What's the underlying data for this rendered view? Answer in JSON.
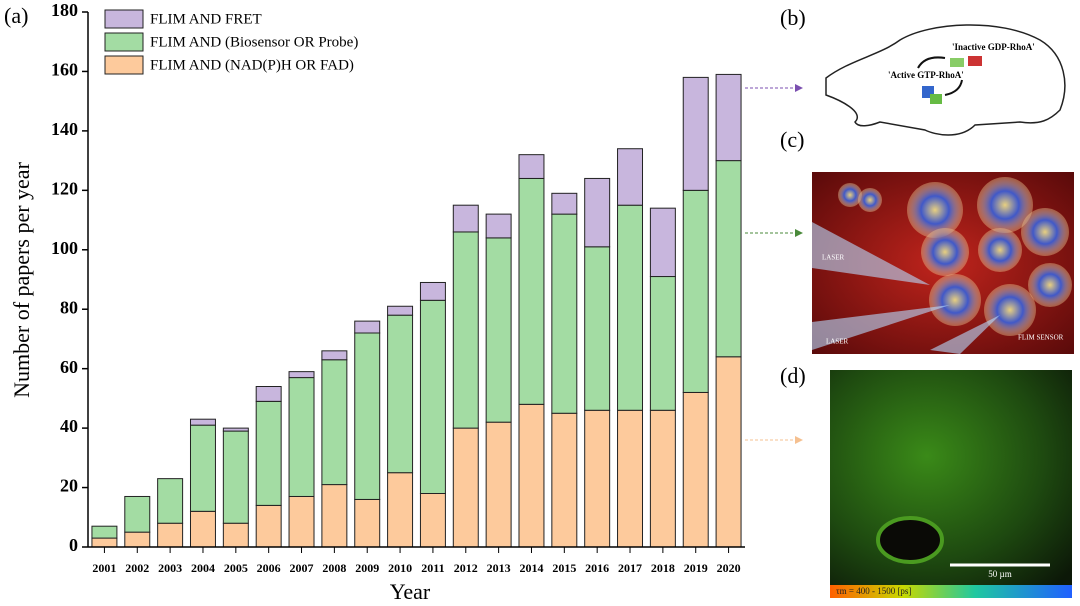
{
  "chart_data": {
    "type": "stacked_bar",
    "x_label": "Year",
    "y_label": "Number of papers per year",
    "categories": [
      "2001",
      "2002",
      "2003",
      "2004",
      "2005",
      "2006",
      "2007",
      "2008",
      "2009",
      "2010",
      "2011",
      "2012",
      "2013",
      "2014",
      "2015",
      "2016",
      "2017",
      "2018",
      "2019",
      "2020"
    ],
    "series": [
      {
        "name": "FLIM AND (NAD(P)H OR FAD)",
        "color": "#fdca9c",
        "values": [
          3,
          5,
          8,
          12,
          8,
          14,
          17,
          21,
          16,
          25,
          18,
          40,
          42,
          48,
          45,
          46,
          46,
          46,
          52,
          64
        ]
      },
      {
        "name": "FLIM AND (Biosensor OR Probe)",
        "color": "#a3dca3",
        "values": [
          4,
          12,
          15,
          29,
          31,
          35,
          40,
          42,
          56,
          53,
          65,
          66,
          62,
          76,
          67,
          55,
          69,
          45,
          68,
          66
        ]
      },
      {
        "name": "FLIM AND FRET",
        "color": "#c8b6dd",
        "values": [
          0,
          0,
          0,
          2,
          1,
          5,
          2,
          3,
          4,
          3,
          6,
          9,
          8,
          8,
          7,
          23,
          19,
          23,
          38,
          29
        ]
      }
    ],
    "ylim": [
      0,
      180
    ],
    "yticks": [
      0,
      20,
      40,
      60,
      80,
      100,
      120,
      140,
      160,
      180
    ],
    "grid": false
  },
  "figure": {
    "panel_labels": [
      "(a)",
      "(b)",
      "(c)",
      "(d)"
    ],
    "b_texts": [
      "'Inactive GDP-RhoA'",
      "'Active GTP-RhoA'"
    ],
    "c_texts": [
      "LASER",
      "LASER",
      "FLIM SENSOR"
    ],
    "d_texts": [
      "50 µm",
      "τm = 400 - 1500 [ps]"
    ]
  }
}
